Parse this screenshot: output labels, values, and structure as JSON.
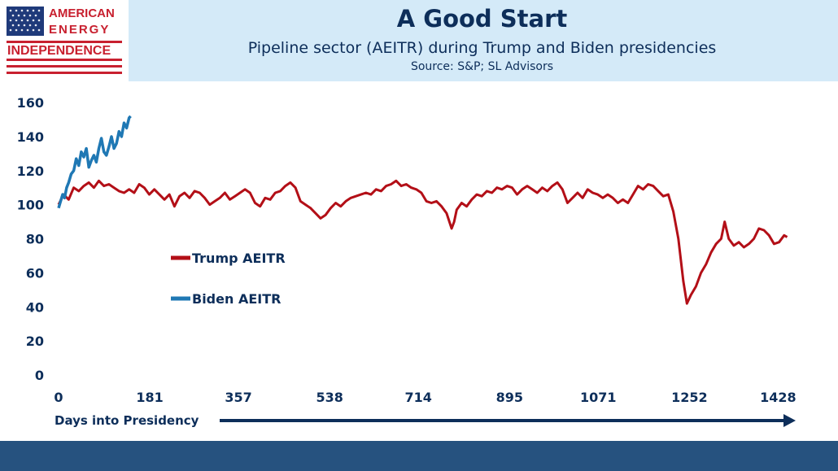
{
  "logo": {
    "line1": "AMERICAN",
    "line2": "ENERGY",
    "line3": "INDEPENDENCE",
    "icon": "us-flag-icon"
  },
  "header": {
    "title": "A Good Start",
    "subtitle": "Pipeline sector (AEITR) during Trump and Biden presidencies",
    "source": "Source: S&P; SL Advisors"
  },
  "colors": {
    "trump": "#b30f17",
    "biden": "#1f78b4",
    "navy": "#0d2e5a",
    "header_bg": "#d4eaf8",
    "footer": "#26527f"
  },
  "chart_data": {
    "type": "line",
    "title": "A Good Start",
    "subtitle": "Pipeline sector (AEITR) during Trump and Biden presidencies",
    "xlabel": "Days into Presidency",
    "ylabel": "",
    "xlim": [
      0,
      1450
    ],
    "ylim": [
      0,
      160
    ],
    "x_ticks": [
      0,
      181,
      357,
      538,
      714,
      895,
      1071,
      1252,
      1428
    ],
    "y_ticks": [
      0,
      20,
      40,
      60,
      80,
      100,
      120,
      140,
      160
    ],
    "legend": "left-center",
    "grid": false,
    "series": [
      {
        "name": "Trump AEITR",
        "color": "#b30f17",
        "points": [
          [
            0,
            100
          ],
          [
            10,
            106
          ],
          [
            20,
            103
          ],
          [
            30,
            110
          ],
          [
            40,
            108
          ],
          [
            50,
            111
          ],
          [
            60,
            113
          ],
          [
            70,
            110
          ],
          [
            80,
            114
          ],
          [
            90,
            111
          ],
          [
            100,
            112
          ],
          [
            110,
            110
          ],
          [
            120,
            108
          ],
          [
            130,
            107
          ],
          [
            140,
            109
          ],
          [
            150,
            107
          ],
          [
            160,
            112
          ],
          [
            170,
            110
          ],
          [
            180,
            106
          ],
          [
            190,
            109
          ],
          [
            200,
            106
          ],
          [
            210,
            103
          ],
          [
            220,
            106
          ],
          [
            230,
            99
          ],
          [
            240,
            105
          ],
          [
            250,
            107
          ],
          [
            260,
            104
          ],
          [
            270,
            108
          ],
          [
            280,
            107
          ],
          [
            290,
            104
          ],
          [
            300,
            100
          ],
          [
            310,
            102
          ],
          [
            320,
            104
          ],
          [
            330,
            107
          ],
          [
            340,
            103
          ],
          [
            350,
            105
          ],
          [
            360,
            107
          ],
          [
            370,
            109
          ],
          [
            380,
            107
          ],
          [
            390,
            101
          ],
          [
            400,
            99
          ],
          [
            410,
            104
          ],
          [
            420,
            103
          ],
          [
            430,
            107
          ],
          [
            440,
            108
          ],
          [
            450,
            111
          ],
          [
            460,
            113
          ],
          [
            470,
            110
          ],
          [
            480,
            102
          ],
          [
            490,
            100
          ],
          [
            500,
            98
          ],
          [
            510,
            95
          ],
          [
            520,
            92
          ],
          [
            530,
            94
          ],
          [
            540,
            98
          ],
          [
            550,
            101
          ],
          [
            560,
            99
          ],
          [
            570,
            102
          ],
          [
            580,
            104
          ],
          [
            590,
            105
          ],
          [
            600,
            106
          ],
          [
            610,
            107
          ],
          [
            620,
            106
          ],
          [
            630,
            109
          ],
          [
            640,
            108
          ],
          [
            650,
            111
          ],
          [
            660,
            112
          ],
          [
            670,
            114
          ],
          [
            680,
            111
          ],
          [
            690,
            112
          ],
          [
            700,
            110
          ],
          [
            710,
            109
          ],
          [
            720,
            107
          ],
          [
            730,
            102
          ],
          [
            740,
            101
          ],
          [
            750,
            102
          ],
          [
            760,
            99
          ],
          [
            770,
            95
          ],
          [
            780,
            86
          ],
          [
            785,
            90
          ],
          [
            790,
            97
          ],
          [
            800,
            101
          ],
          [
            810,
            99
          ],
          [
            820,
            103
          ],
          [
            830,
            106
          ],
          [
            840,
            105
          ],
          [
            850,
            108
          ],
          [
            860,
            107
          ],
          [
            870,
            110
          ],
          [
            880,
            109
          ],
          [
            890,
            111
          ],
          [
            900,
            110
          ],
          [
            910,
            106
          ],
          [
            920,
            109
          ],
          [
            930,
            111
          ],
          [
            940,
            109
          ],
          [
            950,
            107
          ],
          [
            960,
            110
          ],
          [
            970,
            108
          ],
          [
            980,
            111
          ],
          [
            990,
            113
          ],
          [
            1000,
            109
          ],
          [
            1010,
            101
          ],
          [
            1020,
            104
          ],
          [
            1030,
            107
          ],
          [
            1040,
            104
          ],
          [
            1050,
            109
          ],
          [
            1060,
            107
          ],
          [
            1070,
            106
          ],
          [
            1080,
            104
          ],
          [
            1090,
            106
          ],
          [
            1100,
            104
          ],
          [
            1110,
            101
          ],
          [
            1120,
            103
          ],
          [
            1130,
            101
          ],
          [
            1140,
            106
          ],
          [
            1150,
            111
          ],
          [
            1160,
            109
          ],
          [
            1170,
            112
          ],
          [
            1180,
            111
          ],
          [
            1190,
            108
          ],
          [
            1200,
            105
          ],
          [
            1210,
            106
          ],
          [
            1220,
            96
          ],
          [
            1230,
            80
          ],
          [
            1240,
            55
          ],
          [
            1247,
            42
          ],
          [
            1255,
            47
          ],
          [
            1265,
            52
          ],
          [
            1275,
            60
          ],
          [
            1285,
            65
          ],
          [
            1295,
            72
          ],
          [
            1305,
            77
          ],
          [
            1315,
            80
          ],
          [
            1322,
            90
          ],
          [
            1330,
            80
          ],
          [
            1340,
            76
          ],
          [
            1350,
            78
          ],
          [
            1360,
            75
          ],
          [
            1370,
            77
          ],
          [
            1380,
            80
          ],
          [
            1390,
            86
          ],
          [
            1400,
            85
          ],
          [
            1410,
            82
          ],
          [
            1420,
            77
          ],
          [
            1430,
            78
          ],
          [
            1440,
            82
          ],
          [
            1446,
            81
          ]
        ]
      },
      {
        "name": "Biden AEITR",
        "color": "#1f78b4",
        "points": [
          [
            0,
            98
          ],
          [
            4,
            102
          ],
          [
            8,
            106
          ],
          [
            12,
            104
          ],
          [
            16,
            110
          ],
          [
            20,
            113
          ],
          [
            25,
            118
          ],
          [
            30,
            120
          ],
          [
            35,
            127
          ],
          [
            40,
            123
          ],
          [
            45,
            131
          ],
          [
            50,
            128
          ],
          [
            55,
            133
          ],
          [
            60,
            122
          ],
          [
            65,
            126
          ],
          [
            70,
            129
          ],
          [
            75,
            125
          ],
          [
            80,
            133
          ],
          [
            85,
            139
          ],
          [
            90,
            131
          ],
          [
            95,
            129
          ],
          [
            100,
            134
          ],
          [
            105,
            140
          ],
          [
            110,
            133
          ],
          [
            115,
            136
          ],
          [
            120,
            143
          ],
          [
            125,
            140
          ],
          [
            130,
            148
          ],
          [
            135,
            145
          ],
          [
            140,
            151
          ],
          [
            143,
            152
          ]
        ]
      }
    ]
  },
  "xaxis": {
    "title": "Days into Presidency"
  }
}
